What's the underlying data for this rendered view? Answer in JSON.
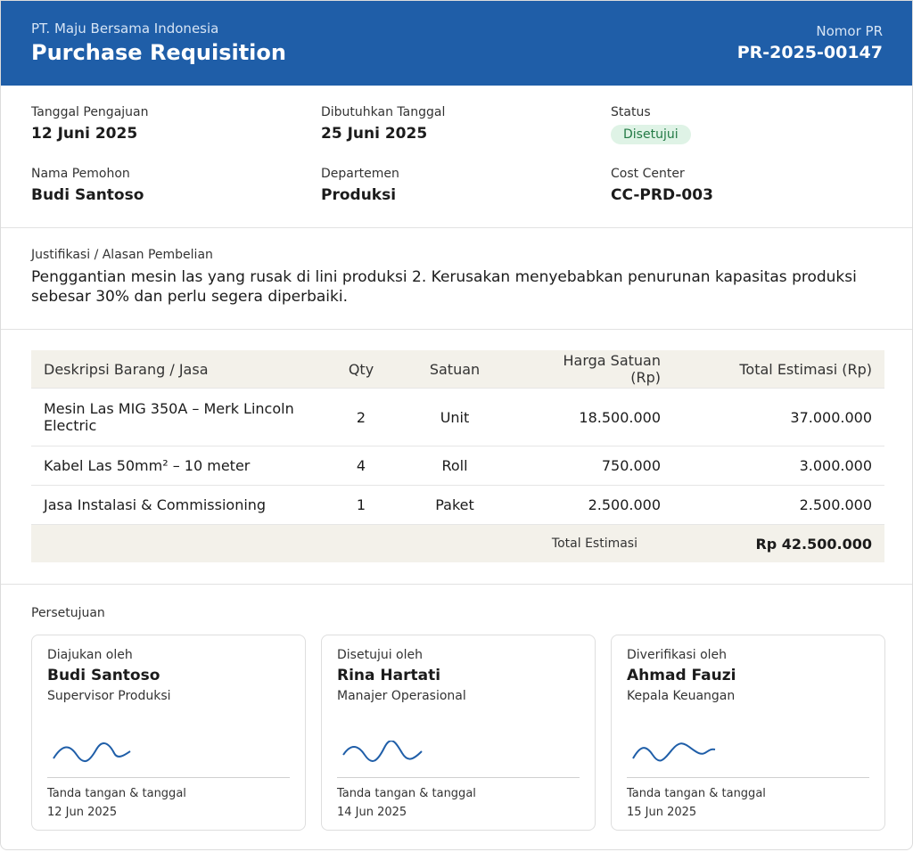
{
  "header": {
    "company": "PT. Maju Bersama Indonesia",
    "title": "Purchase Requisition",
    "number_label": "Nomor PR",
    "number": "PR-2025-00147"
  },
  "info": [
    {
      "label": "Tanggal Pengajuan",
      "value": "12 Juni 2025"
    },
    {
      "label": "Dibutuhkan Tanggal",
      "value": "25 Juni 2025"
    },
    {
      "label": "Status",
      "value": "Disetujui"
    },
    {
      "label": "Nama Pemohon",
      "value": "Budi Santoso"
    },
    {
      "label": "Departemen",
      "value": "Produksi"
    },
    {
      "label": "Cost Center",
      "value": "CC-PRD-003"
    }
  ],
  "justification": {
    "label": "Justifikasi / Alasan Pembelian",
    "text": "Penggantian mesin las yang rusak di lini produksi 2. Kerusakan menyebabkan penurunan kapasitas produksi sebesar 30% dan perlu segera diperbaiki."
  },
  "table": {
    "headers": [
      "Deskripsi Barang / Jasa",
      "Qty",
      "Satuan",
      "Harga Satuan (Rp)",
      "Total Estimasi (Rp)"
    ],
    "rows": [
      [
        "Mesin Las MIG 350A – Merk Lincoln Electric",
        "2",
        "Unit",
        "18.500.000",
        "37.000.000"
      ],
      [
        "Kabel Las 50mm² – 10 meter",
        "4",
        "Roll",
        "750.000",
        "3.000.000"
      ],
      [
        "Jasa Instalasi & Commissioning",
        "1",
        "Paket",
        "2.500.000",
        "2.500.000"
      ]
    ],
    "total_label": "Total Estimasi",
    "total": "Rp 42.500.000"
  },
  "approval": {
    "title": "Persetujuan",
    "cards": [
      {
        "role": "Diajukan oleh",
        "name": "Budi Santoso",
        "position": "Supervisor Produksi",
        "sign_label": "Tanda tangan & tanggal",
        "date": "12 Jun 2025"
      },
      {
        "role": "Disetujui oleh",
        "name": "Rina Hartati",
        "position": "Manajer Operasional",
        "sign_label": "Tanda tangan & tanggal",
        "date": "14 Jun 2025"
      },
      {
        "role": "Diverifikasi oleh",
        "name": "Ahmad Fauzi",
        "position": "Kepala Keuangan",
        "sign_label": "Tanda tangan & tanggal",
        "date": "15 Jun 2025"
      }
    ]
  }
}
